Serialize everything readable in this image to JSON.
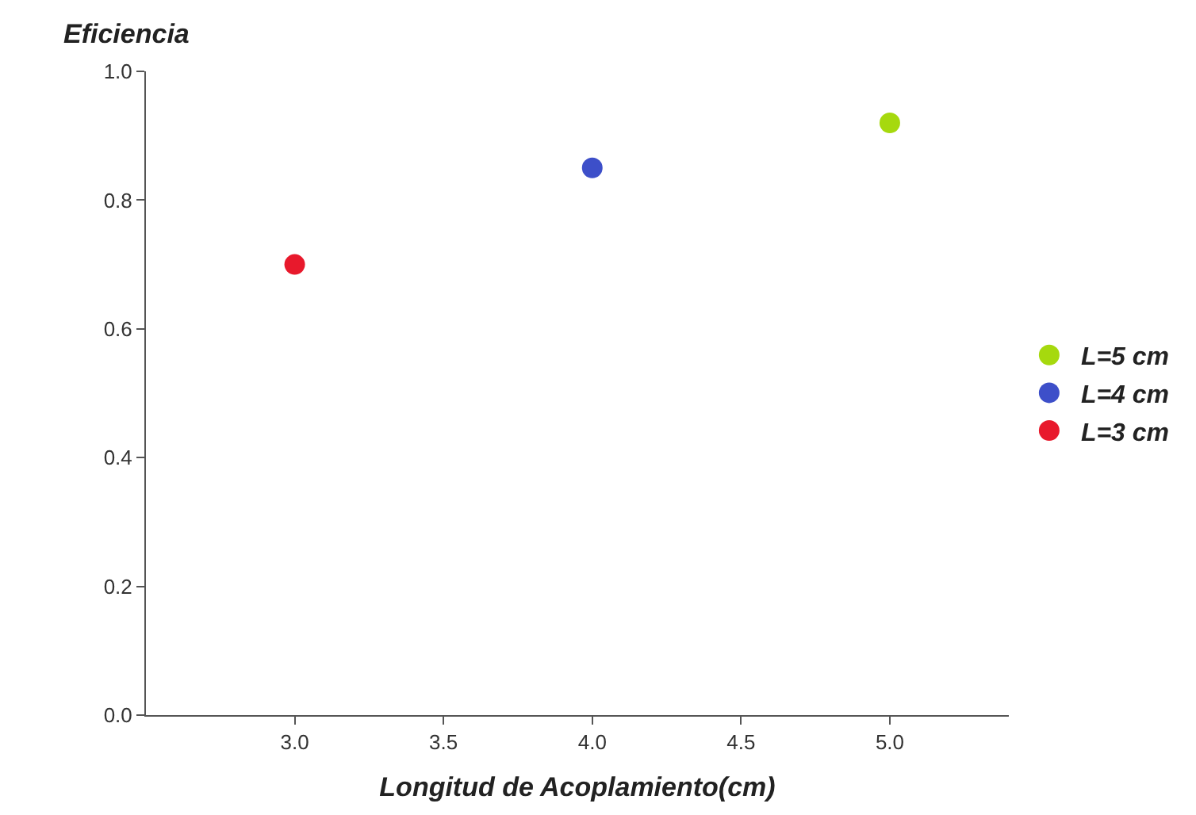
{
  "chart_data": {
    "type": "scatter",
    "xlabel": "Longitud de Acoplamiento(cm)",
    "ylabel": "Eficiencia",
    "series": [
      {
        "name": "L=5 cm",
        "color": "#a6d90e",
        "x": [
          5.0
        ],
        "values": [
          0.92
        ]
      },
      {
        "name": "L=4 cm",
        "color": "#3d4fc9",
        "x": [
          4.0
        ],
        "values": [
          0.85
        ]
      },
      {
        "name": "L=3 cm",
        "color": "#e8192c",
        "x": [
          3.0
        ],
        "values": [
          0.7
        ]
      }
    ],
    "xlim": [
      2.5,
      5.4
    ],
    "ylim": [
      0,
      1
    ],
    "xticks": [
      {
        "value": 3,
        "label": "3.0"
      },
      {
        "value": 3.5,
        "label": "3.5"
      },
      {
        "value": 4,
        "label": "4.0"
      },
      {
        "value": 4.5,
        "label": "4.5"
      },
      {
        "value": 5,
        "label": "5.0"
      }
    ],
    "yticks": [
      {
        "value": 0,
        "label": "0.0"
      },
      {
        "value": 0.2,
        "label": "0.2"
      },
      {
        "value": 0.4,
        "label": "0.4"
      },
      {
        "value": 0.6,
        "label": "0.6"
      },
      {
        "value": 0.8,
        "label": "0.8"
      },
      {
        "value": 1,
        "label": "1.0"
      }
    ],
    "marker": "circle",
    "legend": "right"
  }
}
